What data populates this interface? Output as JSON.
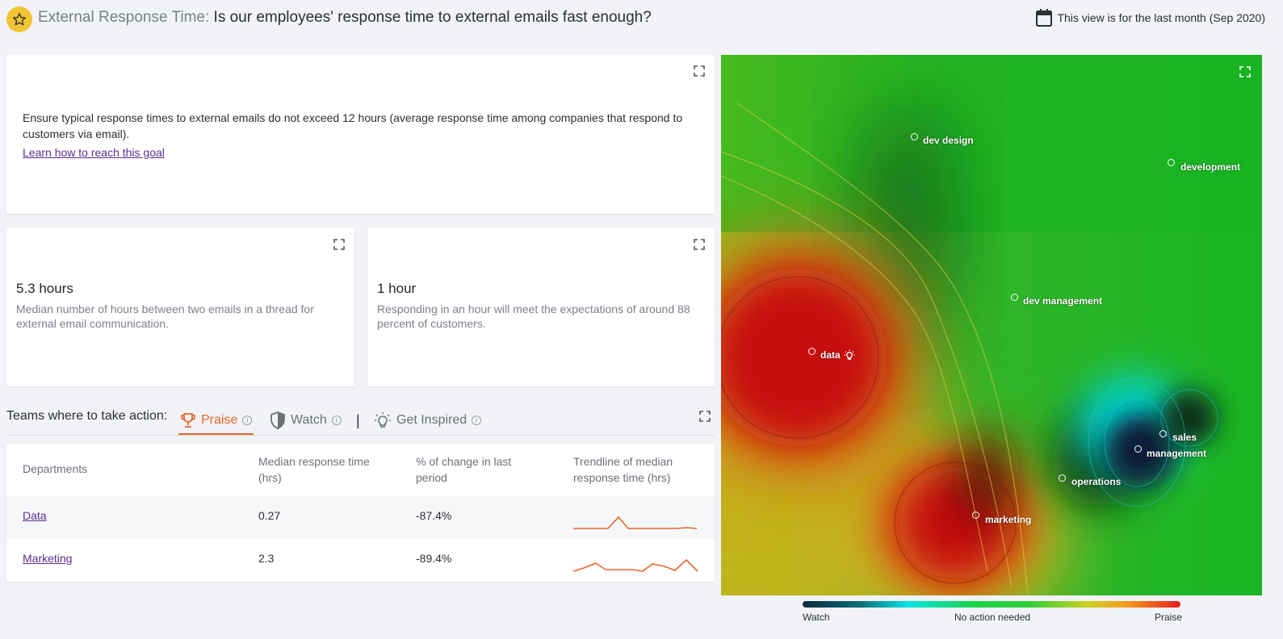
{
  "header": {
    "title_prefix": "External Response Time:",
    "title_question": "Is our employees' response time to external emails fast enough?",
    "period": "This view is for the last month (Sep 2020)"
  },
  "goal": {
    "text": "Ensure typical response times to external emails do not exceed 12 hours (average response time among companies that respond to customers via email).",
    "link": "Learn how to reach this goal"
  },
  "metrics": [
    {
      "value": "5.3 hours",
      "desc": "Median number of hours between two emails in a thread for external email communication."
    },
    {
      "value": "1 hour",
      "desc": "Responding in an hour will meet the expectations of around 88 percent of customers."
    }
  ],
  "action": {
    "label": "Teams where to take action:",
    "tabs": {
      "praise": "Praise",
      "watch": "Watch",
      "inspired": "Get Inspired"
    },
    "separator": "|"
  },
  "table": {
    "headers": {
      "dept": "Departments",
      "median": "Median response time (hrs)",
      "change": "% of change in last period",
      "trend": "Trendline of median response time (hrs)"
    },
    "rows": [
      {
        "dept": "Data",
        "median": "0.27",
        "change": "-87.4%"
      },
      {
        "dept": "Marketing",
        "median": "2.3",
        "change": "-89.4%"
      }
    ]
  },
  "map": {
    "labels": {
      "dev_design": "dev design",
      "development": "development",
      "dev_management": "dev management",
      "data": "data",
      "sales": "sales",
      "management": "management",
      "operations": "operations",
      "marketing": "marketing"
    },
    "legend": {
      "watch": "Watch",
      "neutral": "No action needed",
      "praise": "Praise"
    }
  },
  "colors": {
    "accent": "#e8642a",
    "link": "#5b2d8e",
    "badge": "#f2c433"
  }
}
